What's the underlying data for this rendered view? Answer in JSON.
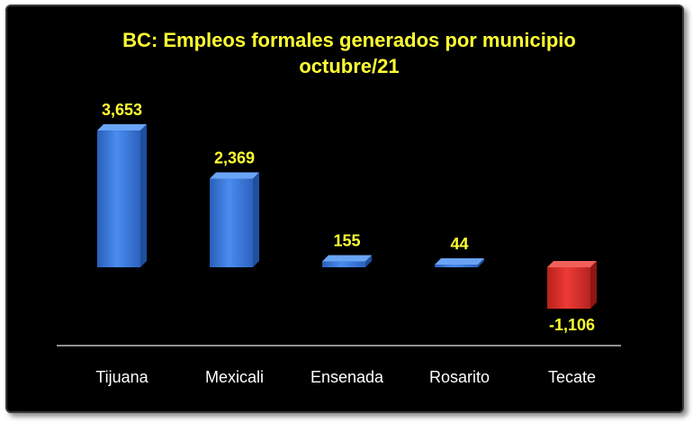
{
  "chart_data": {
    "type": "bar",
    "title": "BC: Empleos formales generados por municipio",
    "subtitle": "octubre/21",
    "categories": [
      "Tijuana",
      "Mexicali",
      "Ensenada",
      "Rosarito",
      "Tecate"
    ],
    "values": [
      3653,
      2369,
      155,
      44,
      -1106
    ],
    "value_labels": [
      "3,653",
      "2,369",
      "155",
      "44",
      "-1,106"
    ],
    "xlabel": "",
    "ylabel": "",
    "ylim": [
      -1400,
      4000
    ],
    "grid": false,
    "legend": "none",
    "colors": {
      "background": "#000000",
      "positive_bar": "#3a78d8",
      "negative_bar": "#d8302c",
      "title": "#ffff33",
      "value_label": "#ffff33",
      "category_label": "#ffffff",
      "axis_line": "#bfbfbf"
    }
  }
}
